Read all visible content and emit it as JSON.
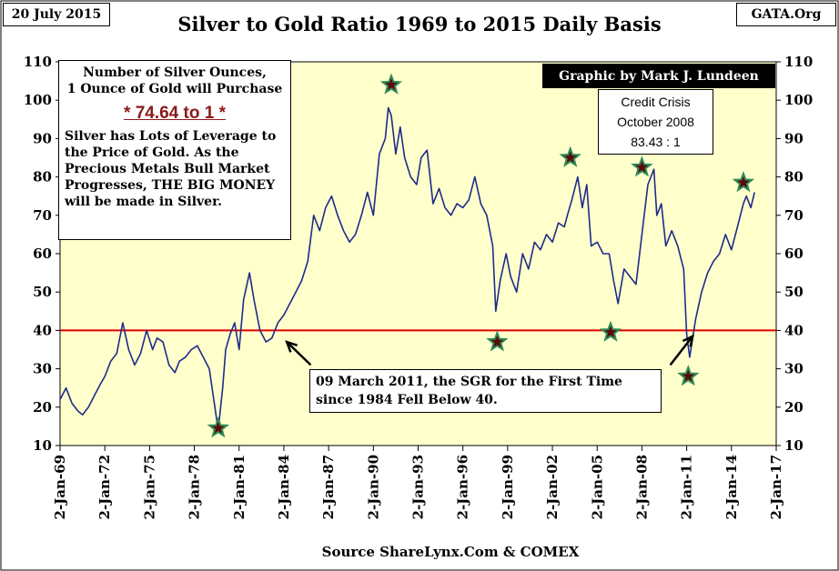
{
  "header": {
    "date_label": "20 July 2015",
    "title": "Silver to Gold Ratio 1969 to 2015 Daily Basis",
    "site_label": "GATA.Org",
    "byline": "Graphic by Mark J. Lundeen"
  },
  "info_box": {
    "line1": "Number of Silver Ounces,",
    "line2": "1 Ounce of Gold will Purchase",
    "ratio": "* 74.64 to 1 *",
    "body": "Silver has Lots of Leverage to the Price of Gold. As the Precious Metals Bull Market Progresses, THE BIG MONEY will be made in Silver."
  },
  "credit_box": {
    "line1": "Credit Crisis",
    "line2": "October 2008",
    "line3": "83.43 : 1"
  },
  "note_box": {
    "line1": "09 March 2011, the SGR for the First Time",
    "line2": "since 1984 Fell Below 40."
  },
  "footer": {
    "source": "Source ShareLynx.Com & COMEX"
  },
  "colors": {
    "plot_background": "#ffffcc",
    "series": "#1f2b8a",
    "reference_line": "#e00000",
    "star_fill": "#5a0a0a",
    "star_stroke": "#2e8b57",
    "ratio_text": "#8b1a1a"
  },
  "chart_data": {
    "type": "line",
    "title": "Silver to Gold Ratio 1969 to 2015 Daily Basis",
    "xlabel": "",
    "ylabel": "",
    "x_tick_labels": [
      "2-Jan-69",
      "2-Jan-72",
      "2-Jan-75",
      "2-Jan-78",
      "2-Jan-81",
      "2-Jan-84",
      "2-Jan-87",
      "2-Jan-90",
      "2-Jan-93",
      "2-Jan-96",
      "2-Jan-99",
      "2-Jan-02",
      "2-Jan-05",
      "2-Jan-08",
      "2-Jan-11",
      "2-Jan-14",
      "2-Jan-17"
    ],
    "y_tick_labels": [
      "10",
      "20",
      "30",
      "40",
      "50",
      "60",
      "70",
      "80",
      "90",
      "100",
      "110"
    ],
    "xlim": [
      1969.0,
      2017.0
    ],
    "ylim": [
      10,
      110
    ],
    "grid": false,
    "reference_line": {
      "y": 40
    },
    "series": [
      {
        "x": [
          1969.0,
          1969.4,
          1969.8,
          1970.2,
          1970.5,
          1970.9,
          1971.3,
          1971.7,
          1972.0,
          1972.4,
          1972.8,
          1973.2,
          1973.6,
          1974.0,
          1974.4,
          1974.8,
          1975.2,
          1975.5,
          1975.9,
          1976.3,
          1976.7,
          1977.0,
          1977.4,
          1977.8,
          1978.2,
          1978.6,
          1979.0,
          1979.3,
          1979.6,
          1979.9,
          1980.1,
          1980.4,
          1980.7,
          1981.0,
          1981.3,
          1981.7,
          1982.0,
          1982.4,
          1982.8,
          1983.2,
          1983.6,
          1984.0,
          1984.4,
          1984.8,
          1985.2,
          1985.6,
          1986.0,
          1986.4,
          1986.8,
          1987.2,
          1987.6,
          1988.0,
          1988.4,
          1988.8,
          1989.2,
          1989.6,
          1990.0,
          1990.4,
          1990.8,
          1991.0,
          1991.2,
          1991.5,
          1991.8,
          1992.1,
          1992.5,
          1992.9,
          1993.2,
          1993.6,
          1994.0,
          1994.4,
          1994.8,
          1995.2,
          1995.6,
          1996.0,
          1996.4,
          1996.8,
          1997.2,
          1997.6,
          1998.0,
          1998.2,
          1998.5,
          1998.9,
          1999.2,
          1999.6,
          2000.0,
          2000.4,
          2000.8,
          2001.2,
          2001.6,
          2002.0,
          2002.4,
          2002.8,
          2003.0,
          2003.3,
          2003.7,
          2004.0,
          2004.3,
          2004.6,
          2005.0,
          2005.4,
          2005.8,
          2006.1,
          2006.4,
          2006.8,
          2007.2,
          2007.6,
          2008.0,
          2008.4,
          2008.8,
          2009.0,
          2009.3,
          2009.6,
          2010.0,
          2010.4,
          2010.8,
          2011.0,
          2011.2,
          2011.6,
          2012.0,
          2012.4,
          2012.8,
          2013.2,
          2013.6,
          2014.0,
          2014.4,
          2014.8,
          2015.0,
          2015.3,
          2015.55
        ],
        "y": [
          22,
          25,
          21,
          19,
          18,
          20,
          23,
          26,
          28,
          32,
          34,
          42,
          35,
          31,
          34,
          40,
          35,
          38,
          37,
          31,
          29,
          32,
          33,
          35,
          36,
          33,
          30,
          22,
          14,
          25,
          35,
          39,
          42,
          35,
          48,
          55,
          48,
          40,
          37,
          38,
          42,
          44,
          47,
          50,
          53,
          58,
          70,
          66,
          72,
          75,
          70,
          66,
          63,
          65,
          70,
          76,
          70,
          86,
          90,
          98,
          96,
          86,
          93,
          85,
          80,
          78,
          85,
          87,
          73,
          77,
          72,
          70,
          73,
          72,
          74,
          80,
          73,
          70,
          62,
          45,
          53,
          60,
          54,
          50,
          60,
          56,
          63,
          61,
          65,
          63,
          68,
          67,
          70,
          74,
          80,
          72,
          78,
          62,
          63,
          60,
          60,
          53,
          47,
          56,
          54,
          52,
          65,
          78,
          82,
          70,
          73,
          62,
          66,
          62,
          56,
          39,
          33,
          43,
          50,
          55,
          58,
          60,
          65,
          61,
          67,
          73,
          75,
          72,
          76
        ]
      }
    ],
    "annotations": [
      {
        "x": 1979.6,
        "y": 14.5,
        "marker": "star"
      },
      {
        "x": 1991.2,
        "y": 104,
        "marker": "star"
      },
      {
        "x": 1998.3,
        "y": 37,
        "marker": "star"
      },
      {
        "x": 2003.2,
        "y": 85,
        "marker": "star"
      },
      {
        "x": 2005.9,
        "y": 39.5,
        "marker": "star"
      },
      {
        "x": 2008.0,
        "y": 82.5,
        "marker": "star"
      },
      {
        "x": 2011.1,
        "y": 28,
        "marker": "star"
      },
      {
        "x": 2014.8,
        "y": 78.5,
        "marker": "star"
      }
    ],
    "arrows": [
      {
        "from": [
          1985.8,
          31
        ],
        "to": [
          1984.2,
          37
        ]
      },
      {
        "from": [
          2009.9,
          31
        ],
        "to": [
          2011.4,
          38.5
        ]
      }
    ]
  }
}
